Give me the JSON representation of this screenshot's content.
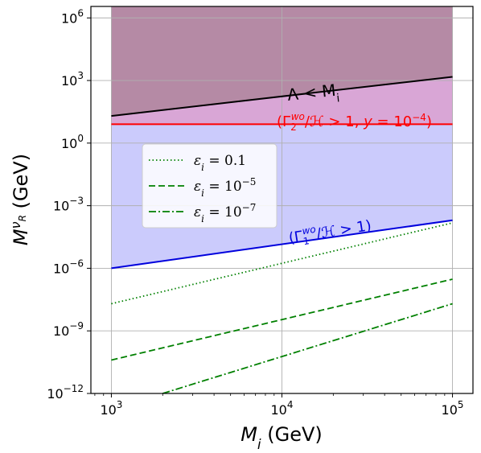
{
  "chart_data": {
    "type": "line",
    "x_scale": "log",
    "y_scale": "log",
    "xlim": [
      1000,
      100000
    ],
    "ylim": [
      1e-12,
      100000000.0
    ],
    "xlabel": "M_i (GeV)",
    "ylabel": "M^{ν_R} (GeV)",
    "grid": true,
    "x_ticks": [
      {
        "value": 1000,
        "base": "10",
        "exp": "3"
      },
      {
        "value": 10000,
        "base": "10",
        "exp": "4"
      },
      {
        "value": 100000,
        "base": "10",
        "exp": "5"
      }
    ],
    "y_ticks": [
      {
        "value": 1e-12,
        "base": "10",
        "exp": "−12"
      },
      {
        "value": 1e-09,
        "base": "10",
        "exp": "−9"
      },
      {
        "value": 1e-06,
        "base": "10",
        "exp": "−6"
      },
      {
        "value": 0.001,
        "base": "10",
        "exp": "−3"
      },
      {
        "value": 1,
        "base": "10",
        "exp": "0"
      },
      {
        "value": 1000,
        "base": "10",
        "exp": "3"
      },
      {
        "value": 1000000.0,
        "base": "10",
        "exp": "6"
      }
    ],
    "regions": [
      {
        "color": "#b58aa5",
        "lower": "lambda_line",
        "upper": "top"
      },
      {
        "color": "#d9a6d6",
        "lower": "gamma2_line",
        "upper": "lambda_line"
      },
      {
        "color": "#cbcbfc",
        "lower": "gamma1_line",
        "upper": "gamma2_line"
      }
    ],
    "boundary_lines": [
      {
        "id": "lambda_line",
        "color": "#000000",
        "x": [
          1000,
          100000
        ],
        "y": [
          20,
          1500
        ]
      },
      {
        "id": "gamma2_line",
        "color": "#ff0000",
        "x": [
          1000,
          100000
        ],
        "y": [
          8,
          8
        ]
      },
      {
        "id": "gamma1_line",
        "color": "#0000dd",
        "x": [
          1000,
          100000
        ],
        "y": [
          1e-06,
          0.0002
        ]
      }
    ],
    "series": [
      {
        "name": "ε_i = 0.1",
        "dash": "dotted",
        "color": "#008000",
        "x": [
          1000,
          100000
        ],
        "y": [
          2e-08,
          0.00015
        ]
      },
      {
        "name": "ε_i = 10^−5",
        "dash": "dashed",
        "color": "#008000",
        "x": [
          1000,
          100000
        ],
        "y": [
          4e-11,
          3e-07
        ]
      },
      {
        "name": "ε_i = 10^−7",
        "dash": "dashdot",
        "color": "#008000",
        "x": [
          2000,
          100000
        ],
        "y": [
          1e-12,
          2e-08
        ]
      }
    ],
    "annotations": [
      {
        "id": "lambda",
        "text": "Λ < M_i",
        "color": "#000000"
      },
      {
        "id": "gamma2",
        "text": "(Γ_2^{wo}/ℋ > 1, y = 10^{−4})",
        "color": "#ff0000"
      },
      {
        "id": "gamma1",
        "text": "(Γ_1^{wo}/ℋ > 1)",
        "color": "#0000dd"
      }
    ],
    "legend": {
      "placement": "upper-left"
    }
  }
}
